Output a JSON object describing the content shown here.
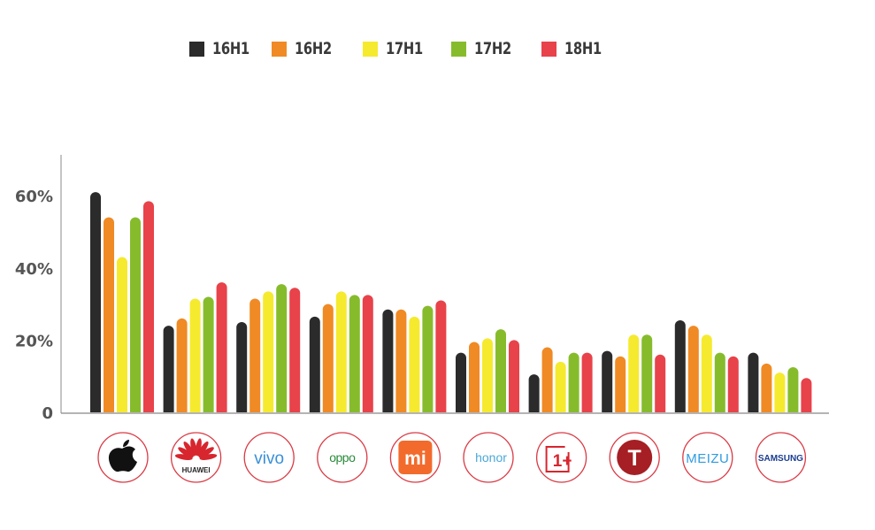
{
  "chart_data": {
    "type": "bar",
    "categories": [
      "Apple",
      "HUAWEI",
      "vivo",
      "OPPO",
      "MI",
      "honor",
      "1+",
      "T",
      "MEIZU",
      "SAMSUNG"
    ],
    "series": [
      {
        "name": "16H1",
        "color": "#2b2b2b",
        "values": [
          61,
          24,
          25,
          26.5,
          28.5,
          16.5,
          10.5,
          17,
          25.5,
          16.5
        ]
      },
      {
        "name": "16H2",
        "color": "#f08a24",
        "values": [
          54,
          26,
          31.5,
          30,
          28.5,
          19.5,
          18,
          15.5,
          24,
          13.5
        ]
      },
      {
        "name": "17H1",
        "color": "#f5ea2e",
        "values": [
          43,
          31.5,
          33.5,
          33.5,
          26.5,
          20.5,
          14,
          21.5,
          21.5,
          11
        ]
      },
      {
        "name": "17H2",
        "color": "#86bc2c",
        "values": [
          54,
          32,
          35.5,
          32.5,
          29.5,
          23,
          16.5,
          21.5,
          16.5,
          12.5
        ]
      },
      {
        "name": "18H1",
        "color": "#e8424a",
        "values": [
          58.5,
          36,
          34.5,
          32.5,
          31,
          20,
          16.5,
          16,
          15.5,
          9.5
        ]
      }
    ],
    "yticks": [
      "0",
      "20%",
      "40%",
      "60%"
    ],
    "ytick_values": [
      0,
      20,
      40,
      60
    ],
    "ylim": [
      0,
      72
    ],
    "legend_position": "top",
    "grid": false,
    "logo_text": {
      "HUAWEI": "HUAWEI",
      "vivo": "vivo",
      "OPPO": "oppo",
      "MI": "mi",
      "honor": "honor",
      "1+": "1+",
      "T": "T",
      "MEIZU": "MEIZU",
      "SAMSUNG": "SAMSUNG"
    }
  }
}
